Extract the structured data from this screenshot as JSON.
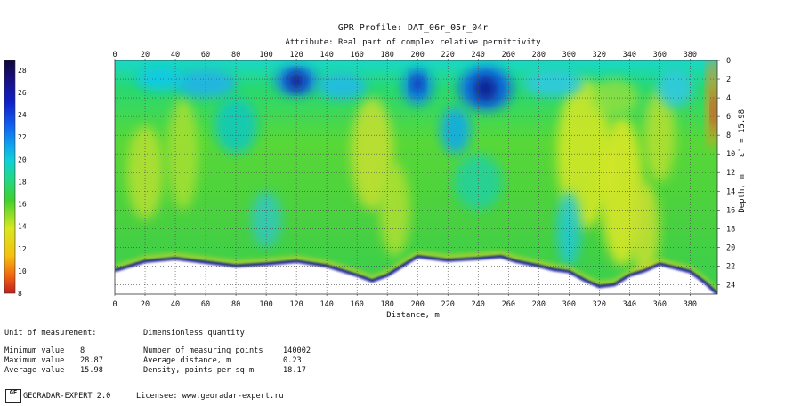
{
  "chart_data": {
    "type": "heatmap",
    "title": "GPR Profile: DAT_06r_05r_04r",
    "subtitle": "Attribute:  Real part of complex relative permittivity",
    "xlabel": "Distance, m",
    "ylabel": "Depth, m",
    "xlim": [
      0,
      398
    ],
    "ylim": [
      0,
      25
    ],
    "x_ticks": [
      "0",
      "20",
      "40",
      "60",
      "80",
      "100",
      "120",
      "140",
      "160",
      "180",
      "200",
      "220",
      "240",
      "260",
      "280",
      "300",
      "320",
      "340",
      "360",
      "380"
    ],
    "y_ticks": [
      "0",
      "2",
      "4",
      "6",
      "8",
      "10",
      "12",
      "14",
      "16",
      "18",
      "20",
      "22",
      "24"
    ],
    "colorbar": {
      "min": 8,
      "max": 28.87,
      "ticks": [
        "28",
        "26",
        "24",
        "22",
        "20",
        "18",
        "16",
        "14",
        "12",
        "10",
        "8"
      ]
    },
    "epsilon_label": "ε' = 15.98",
    "grid": true,
    "bottom_boundary": [
      [
        0,
        22.5
      ],
      [
        10,
        22.0
      ],
      [
        20,
        21.5
      ],
      [
        40,
        21.2
      ],
      [
        60,
        21.6
      ],
      [
        80,
        22.0
      ],
      [
        100,
        21.8
      ],
      [
        120,
        21.5
      ],
      [
        140,
        22.0
      ],
      [
        160,
        23.0
      ],
      [
        170,
        23.6
      ],
      [
        180,
        23.0
      ],
      [
        190,
        22.0
      ],
      [
        200,
        21.0
      ],
      [
        210,
        21.2
      ],
      [
        220,
        21.4
      ],
      [
        240,
        21.2
      ],
      [
        255,
        21.0
      ],
      [
        265,
        21.5
      ],
      [
        280,
        22.0
      ],
      [
        290,
        22.4
      ],
      [
        300,
        22.6
      ],
      [
        310,
        23.5
      ],
      [
        320,
        24.2
      ],
      [
        330,
        24.0
      ],
      [
        340,
        23.0
      ],
      [
        350,
        22.5
      ],
      [
        360,
        21.8
      ],
      [
        370,
        22.2
      ],
      [
        380,
        22.6
      ],
      [
        390,
        23.8
      ],
      [
        398,
        25.0
      ]
    ]
  },
  "info": {
    "unit_label": "Unit of measurement:",
    "unit_value": "Dimensionless quantity",
    "min_label": "Minimum value",
    "min_value": "8",
    "max_label": "Maximum value",
    "max_value": "28.87",
    "avg_label": "Average value",
    "avg_value": "15.98",
    "points_label": "Number of measuring points",
    "points_value": "140002",
    "dist_label": "Average distance, m",
    "dist_value": "0.23",
    "density_label": "Density, points per sq m",
    "density_value": "18.17"
  },
  "footer": {
    "logo_text": "GE",
    "app": "GEORADAR-EXPERT 2.0",
    "licensee": "Licensee: www.georadar-expert.ru"
  },
  "colors": {
    "low": "#c0202a",
    "mid_low": "#f5d020",
    "mid": "#30d030",
    "mid_high": "#10c0e0",
    "high": "#1020c0",
    "top": "#101040"
  }
}
